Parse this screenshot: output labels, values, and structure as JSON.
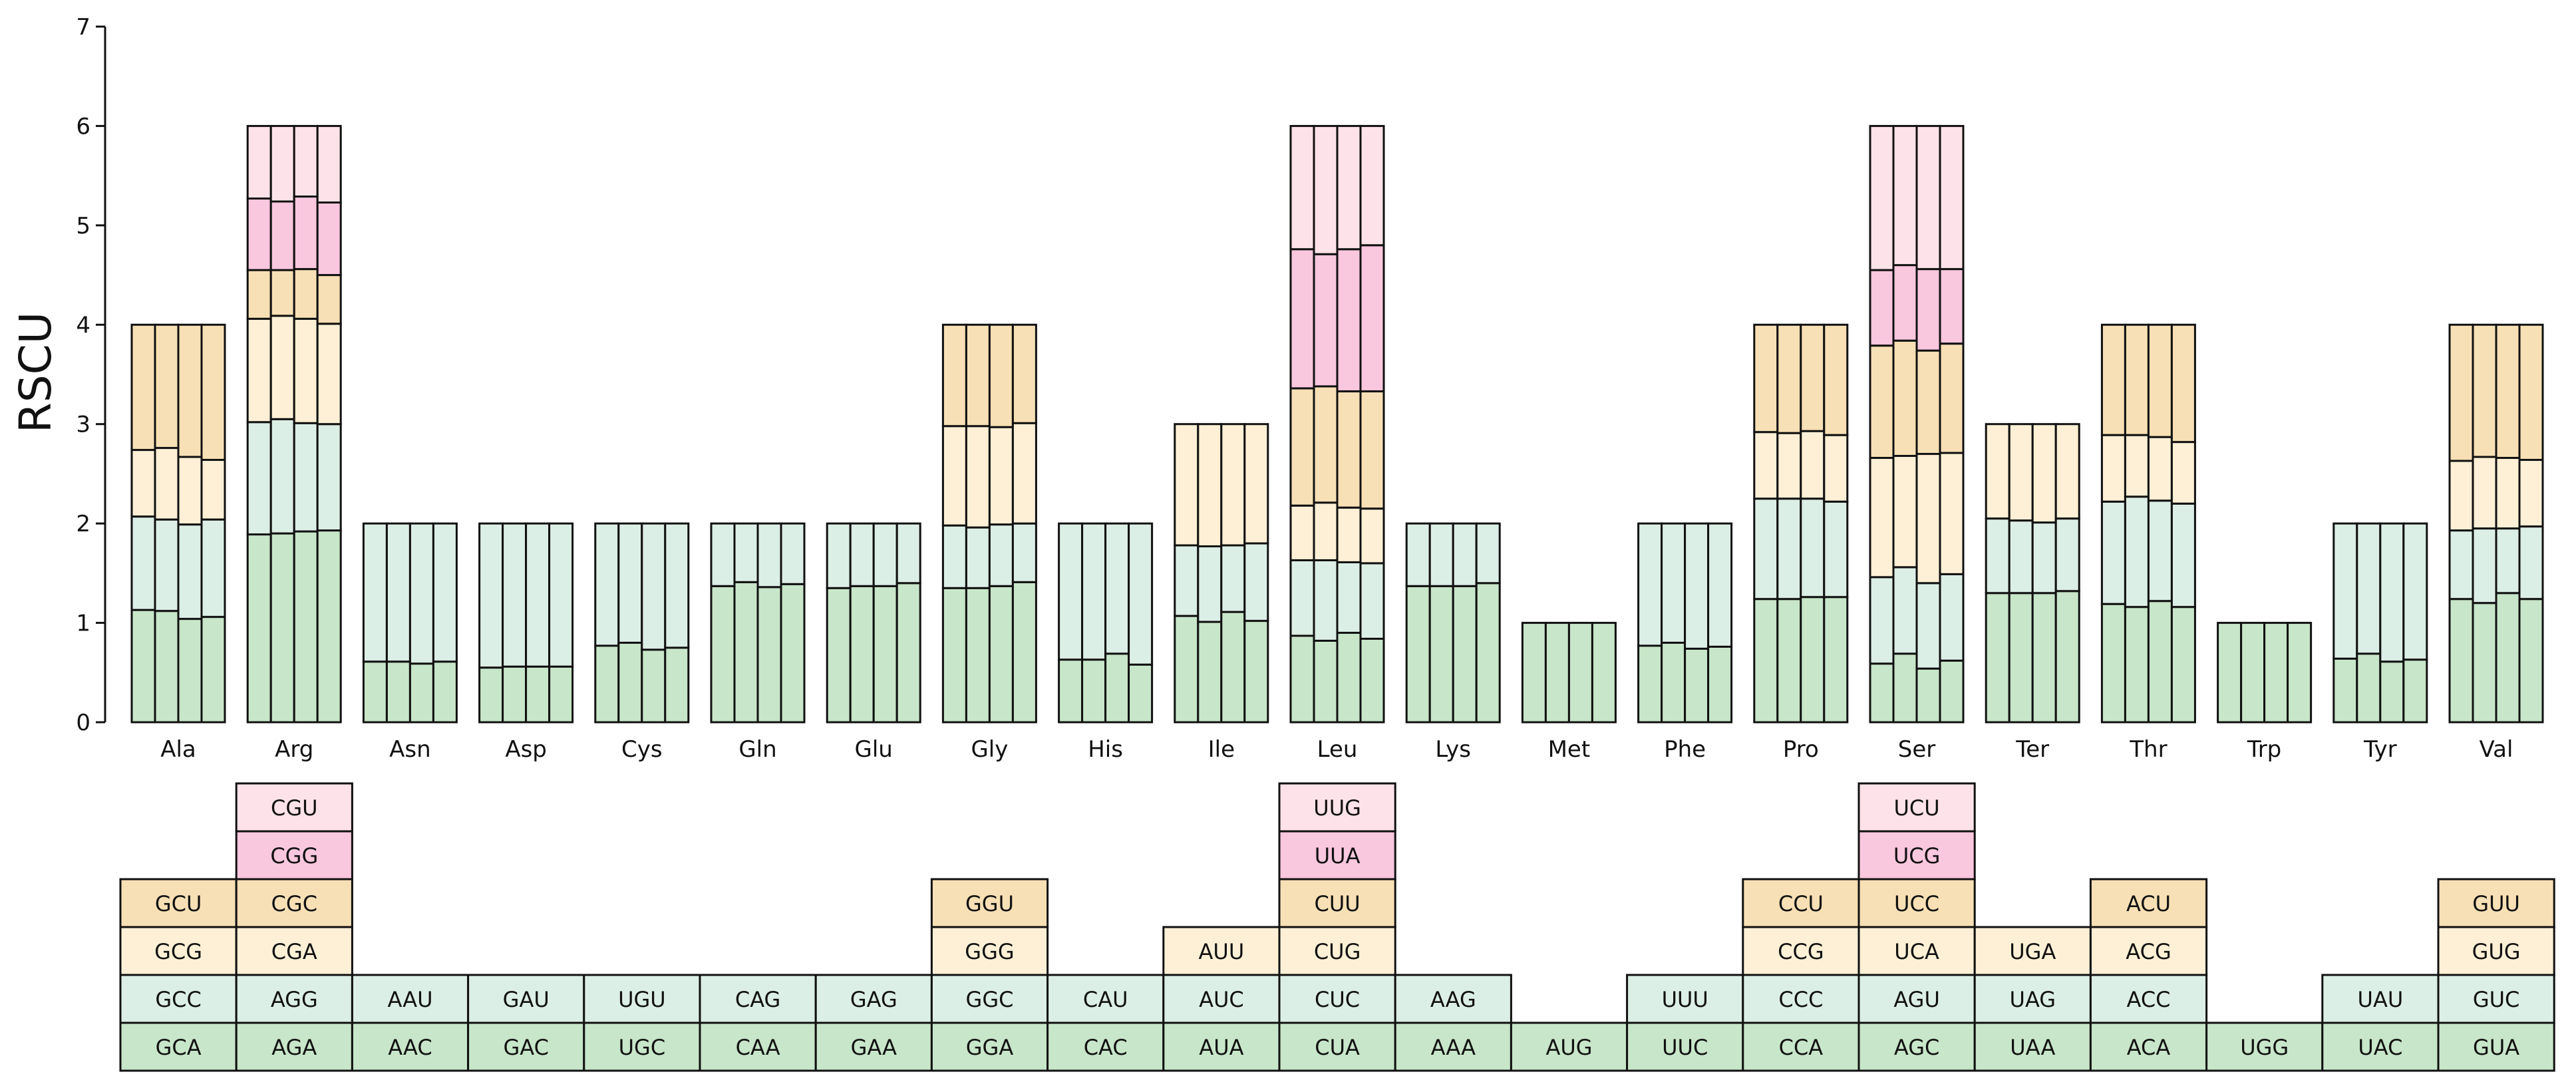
{
  "chart_data": {
    "type": "bar",
    "subtype": "stacked-grouped",
    "title": "",
    "xlabel": "",
    "ylabel": "RSCU",
    "ylim": [
      0,
      7
    ],
    "yticks": [
      "0",
      "1",
      "2",
      "3",
      "4",
      "5",
      "6",
      "7"
    ],
    "grid": false,
    "legend": "codon table below axis",
    "layer_colors": [
      "#c8e6c9",
      "#dcefe6",
      "#fdf0d6",
      "#f7e0b5",
      "#f9c7de",
      "#fde3e9"
    ],
    "stroke_color": "#111111",
    "bars_per_group": 4,
    "categories": [
      "Ala",
      "Arg",
      "Asn",
      "Asp",
      "Cys",
      "Gln",
      "Glu",
      "Gly",
      "His",
      "Ile",
      "Leu",
      "Lys",
      "Met",
      "Phe",
      "Pro",
      "Ser",
      "Ter",
      "Thr",
      "Trp",
      "Tyr",
      "Val"
    ],
    "codons": [
      [
        "GCA",
        "GCC",
        "GCG",
        "GCU"
      ],
      [
        "AGA",
        "AGG",
        "CGA",
        "CGC",
        "CGG",
        "CGU"
      ],
      [
        "AAC",
        "AAU"
      ],
      [
        "GAC",
        "GAU"
      ],
      [
        "UGC",
        "UGU"
      ],
      [
        "CAA",
        "CAG"
      ],
      [
        "GAA",
        "GAG"
      ],
      [
        "GGA",
        "GGC",
        "GGG",
        "GGU"
      ],
      [
        "CAC",
        "CAU"
      ],
      [
        "AUA",
        "AUC",
        "AUU"
      ],
      [
        "CUA",
        "CUC",
        "CUG",
        "CUU",
        "UUA",
        "UUG"
      ],
      [
        "AAA",
        "AAG"
      ],
      [
        "AUG"
      ],
      [
        "UUC",
        "UUU"
      ],
      [
        "CCA",
        "CCC",
        "CCG",
        "CCU"
      ],
      [
        "AGC",
        "AGU",
        "UCA",
        "UCC",
        "UCG",
        "UCU"
      ],
      [
        "UAA",
        "UAG",
        "UGA"
      ],
      [
        "ACA",
        "ACC",
        "ACG",
        "ACU"
      ],
      [
        "UGG"
      ],
      [
        "UAC",
        "UAU"
      ],
      [
        "GUA",
        "GUC",
        "GUG",
        "GUU"
      ]
    ],
    "values": [
      [
        [
          1.13,
          0.94,
          0.67,
          1.26
        ],
        [
          1.12,
          0.92,
          0.72,
          1.24
        ],
        [
          1.04,
          0.95,
          0.68,
          1.33
        ],
        [
          1.06,
          0.98,
          0.6,
          1.36
        ]
      ],
      [
        [
          1.89,
          1.13,
          1.04,
          0.49,
          0.72,
          0.73
        ],
        [
          1.9,
          1.15,
          1.04,
          0.46,
          0.69,
          0.76
        ],
        [
          1.92,
          1.09,
          1.05,
          0.5,
          0.73,
          0.71
        ],
        [
          1.93,
          1.07,
          1.01,
          0.49,
          0.73,
          0.77
        ]
      ],
      [
        [
          0.61,
          1.39
        ],
        [
          0.61,
          1.39
        ],
        [
          0.59,
          1.41
        ],
        [
          0.61,
          1.39
        ]
      ],
      [
        [
          0.55,
          1.45
        ],
        [
          0.56,
          1.44
        ],
        [
          0.56,
          1.44
        ],
        [
          0.56,
          1.44
        ]
      ],
      [
        [
          0.77,
          1.23
        ],
        [
          0.8,
          1.2
        ],
        [
          0.73,
          1.27
        ],
        [
          0.75,
          1.25
        ]
      ],
      [
        [
          1.37,
          0.63
        ],
        [
          1.41,
          0.59
        ],
        [
          1.36,
          0.64
        ],
        [
          1.39,
          0.61
        ]
      ],
      [
        [
          1.35,
          0.65
        ],
        [
          1.37,
          0.63
        ],
        [
          1.37,
          0.63
        ],
        [
          1.4,
          0.6
        ]
      ],
      [
        [
          1.35,
          0.63,
          1.0,
          1.02
        ],
        [
          1.35,
          0.61,
          1.02,
          1.02
        ],
        [
          1.37,
          0.62,
          0.98,
          1.03
        ],
        [
          1.41,
          0.59,
          1.01,
          0.99
        ]
      ],
      [
        [
          0.63,
          1.37
        ],
        [
          0.63,
          1.37
        ],
        [
          0.69,
          1.31
        ],
        [
          0.58,
          1.42
        ]
      ],
      [
        [
          1.07,
          0.71,
          1.22
        ],
        [
          1.01,
          0.76,
          1.23
        ],
        [
          1.11,
          0.67,
          1.22
        ],
        [
          1.02,
          0.78,
          1.2
        ]
      ],
      [
        [
          0.87,
          0.76,
          0.55,
          1.18,
          1.4,
          1.24
        ],
        [
          0.82,
          0.81,
          0.58,
          1.17,
          1.33,
          1.29
        ],
        [
          0.9,
          0.71,
          0.55,
          1.17,
          1.43,
          1.24
        ],
        [
          0.84,
          0.76,
          0.55,
          1.18,
          1.47,
          1.2
        ]
      ],
      [
        [
          1.37,
          0.63
        ],
        [
          1.37,
          0.63
        ],
        [
          1.37,
          0.63
        ],
        [
          1.4,
          0.6
        ]
      ],
      [
        [
          1.0
        ],
        [
          1.0
        ],
        [
          1.0
        ],
        [
          1.0
        ]
      ],
      [
        [
          0.77,
          1.23
        ],
        [
          0.8,
          1.2
        ],
        [
          0.74,
          1.26
        ],
        [
          0.76,
          1.24
        ]
      ],
      [
        [
          1.24,
          1.01,
          0.67,
          1.08
        ],
        [
          1.24,
          1.01,
          0.66,
          1.09
        ],
        [
          1.26,
          0.99,
          0.68,
          1.07
        ],
        [
          1.26,
          0.96,
          0.67,
          1.11
        ]
      ],
      [
        [
          0.59,
          0.87,
          1.2,
          1.13,
          0.76,
          1.45
        ],
        [
          0.69,
          0.87,
          1.12,
          1.16,
          0.76,
          1.4
        ],
        [
          0.54,
          0.86,
          1.3,
          1.04,
          0.82,
          1.44
        ],
        [
          0.62,
          0.87,
          1.22,
          1.1,
          0.75,
          1.44
        ]
      ],
      [
        [
          1.3,
          0.75,
          0.95
        ],
        [
          1.3,
          0.73,
          0.97
        ],
        [
          1.3,
          0.71,
          0.99
        ],
        [
          1.32,
          0.73,
          0.95
        ]
      ],
      [
        [
          1.19,
          1.03,
          0.67,
          1.11
        ],
        [
          1.16,
          1.11,
          0.62,
          1.11
        ],
        [
          1.22,
          1.01,
          0.64,
          1.13
        ],
        [
          1.16,
          1.04,
          0.62,
          1.18
        ]
      ],
      [
        [
          1.0
        ],
        [
          1.0
        ],
        [
          1.0
        ],
        [
          1.0
        ]
      ],
      [
        [
          0.64,
          1.36
        ],
        [
          0.69,
          1.31
        ],
        [
          0.61,
          1.39
        ],
        [
          0.63,
          1.37
        ]
      ],
      [
        [
          1.24,
          0.69,
          0.7,
          1.37
        ],
        [
          1.2,
          0.75,
          0.72,
          1.33
        ],
        [
          1.3,
          0.65,
          0.71,
          1.34
        ],
        [
          1.24,
          0.73,
          0.67,
          1.36
        ]
      ]
    ]
  }
}
